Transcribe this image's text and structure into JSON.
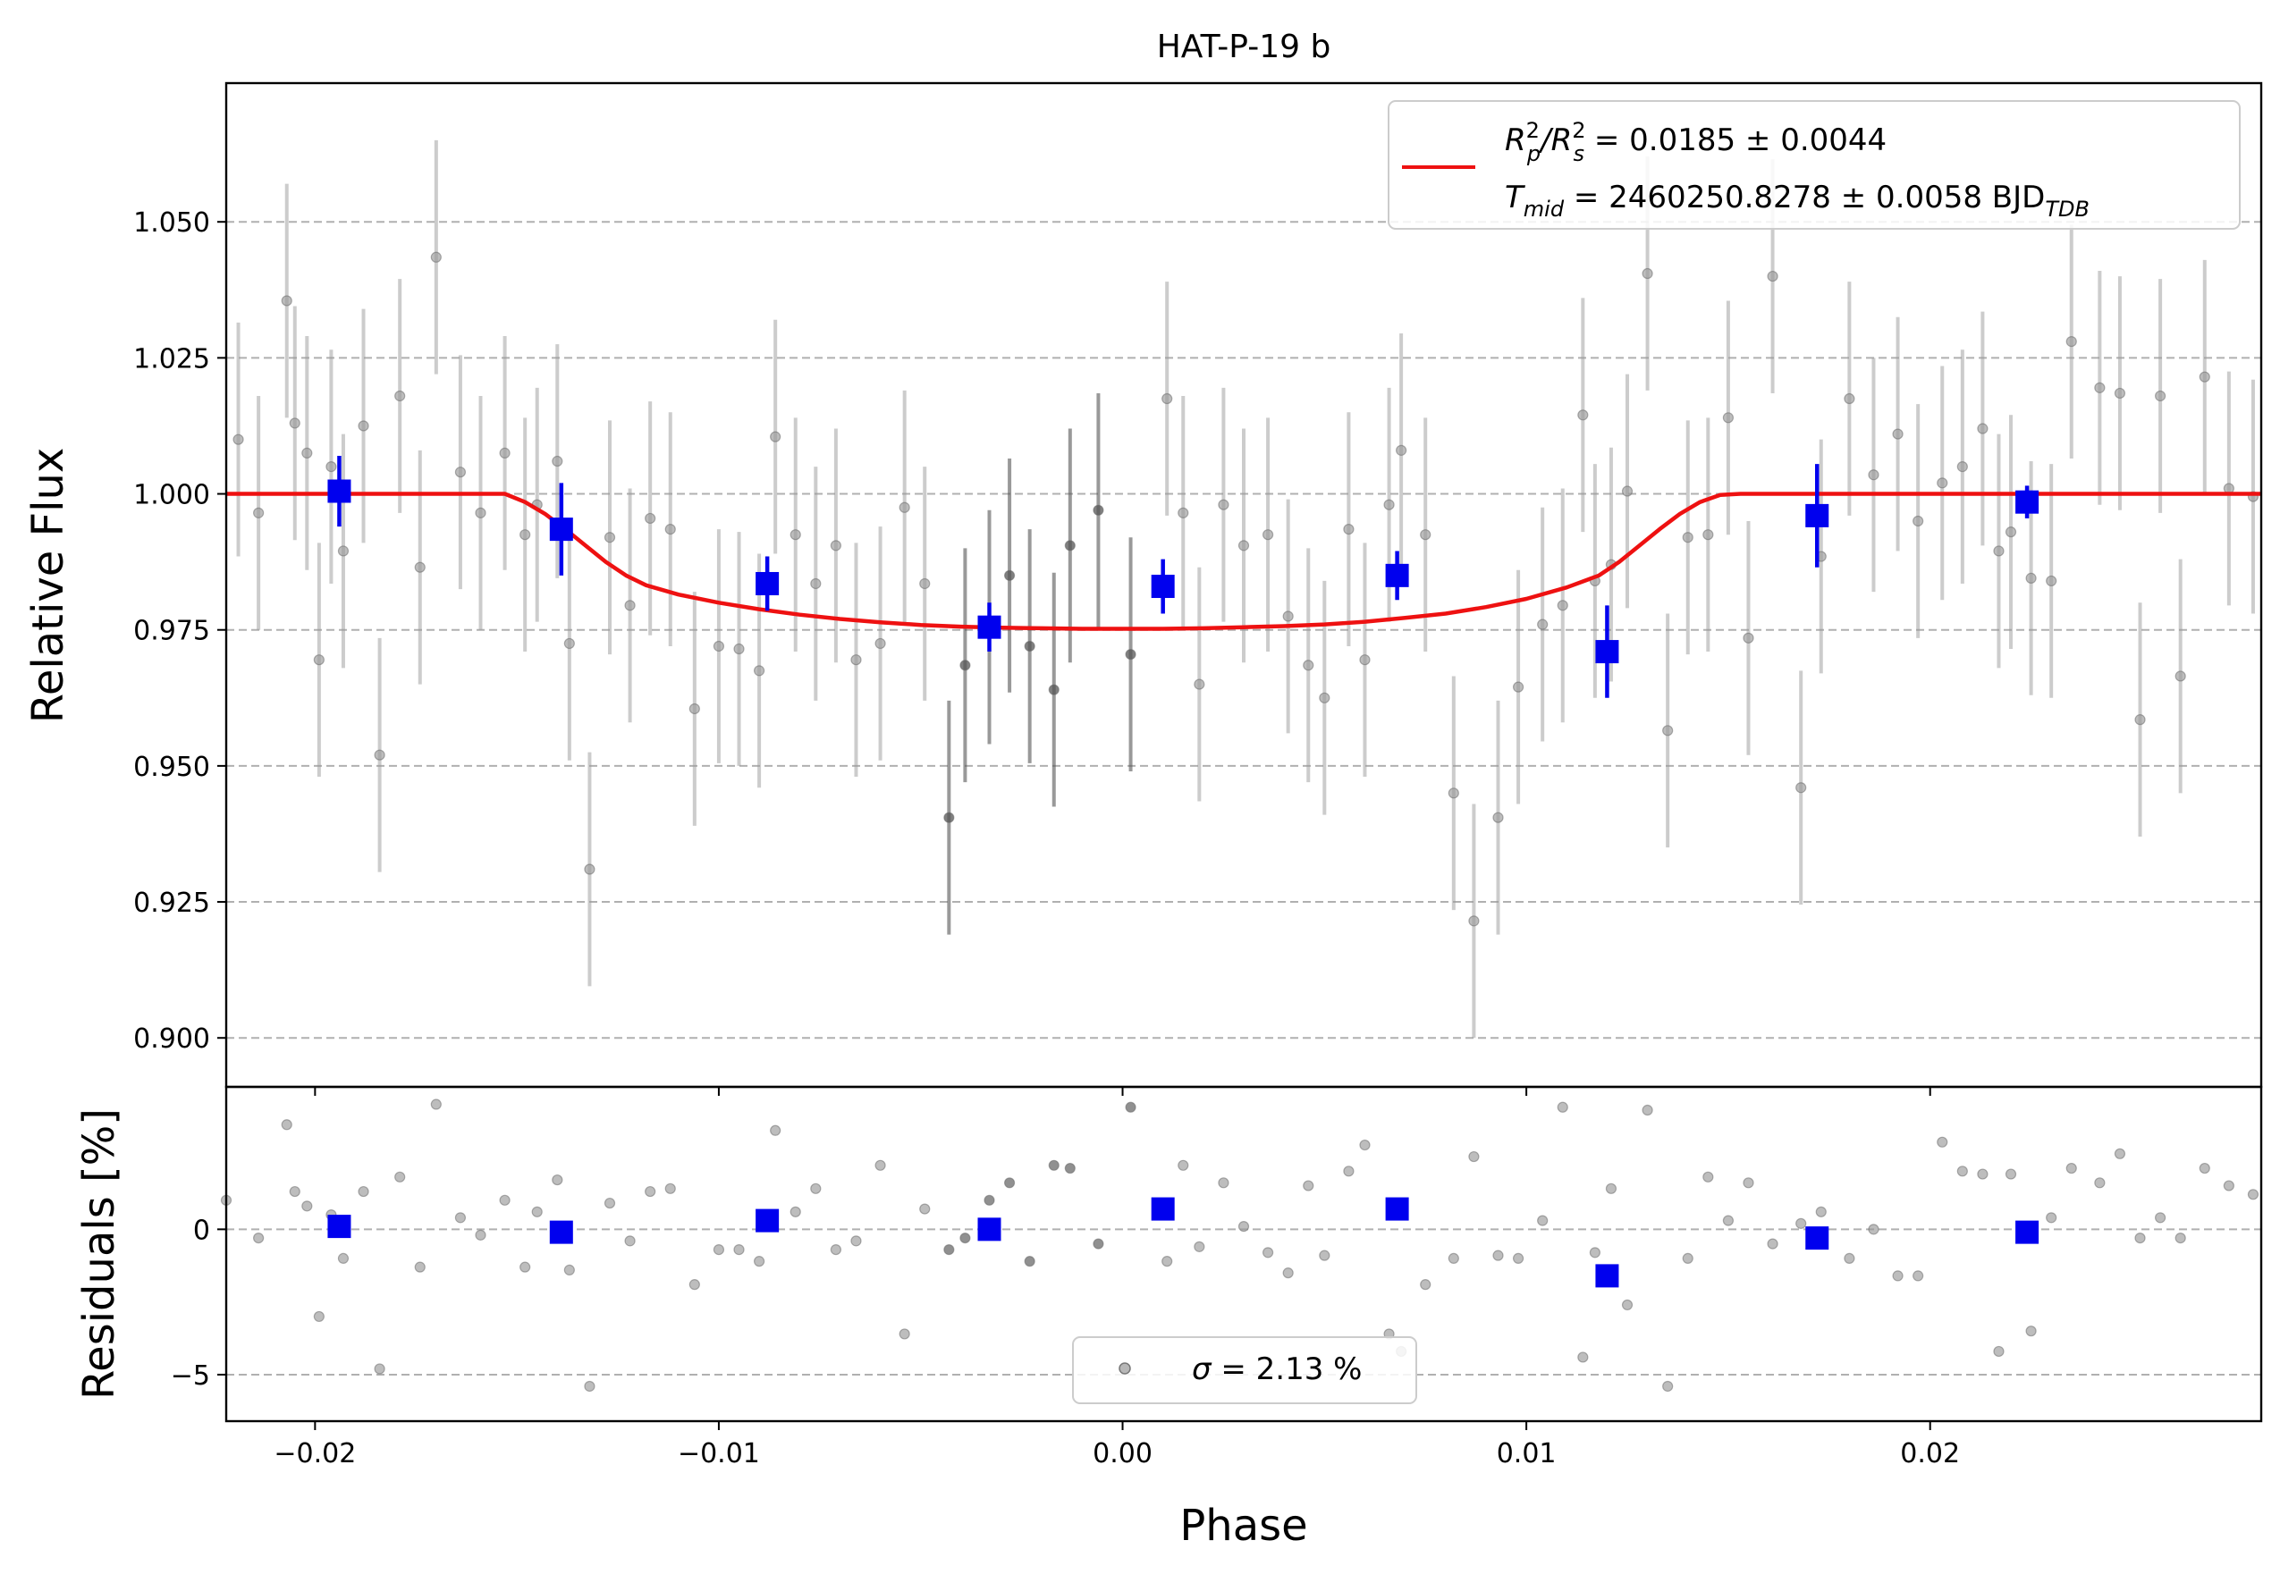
{
  "chart_data": [
    {
      "type": "scatter",
      "title": "HAT-P-19 b",
      "xlabel": "",
      "ylabel": "Relative Flux",
      "xlim": [
        -0.0222,
        0.0282
      ],
      "ylim": [
        0.891,
        1.0755
      ],
      "yticks": [
        {
          "value": 0.9,
          "label": "0.900"
        },
        {
          "value": 0.925,
          "label": "0.925"
        },
        {
          "value": 0.95,
          "label": "0.950"
        },
        {
          "value": 0.975,
          "label": "0.975"
        },
        {
          "value": 1.0,
          "label": "1.000"
        },
        {
          "value": 1.025,
          "label": "1.025"
        },
        {
          "value": 1.05,
          "label": "1.050"
        }
      ],
      "grid": "horizontal dashed",
      "legend_position": "top-right",
      "legend_entries": {
        "model_part1": "R",
        "model_sub1": "p",
        "model_sup1": "2",
        "model_part2": "/R",
        "model_sub2": "s",
        "model_sup2": "2",
        "model_value": " = 0.0185 ± 0.0044",
        "tmid_part1": "T",
        "tmid_sub": "mid",
        "tmid_value": " = 2460250.8278 ± 0.0058 BJD",
        "tmid_sub2": "TDB"
      },
      "colors": {
        "model": "#ee1111",
        "binned": "#0000ee",
        "raw": "#999999",
        "raw_dark": "#555555"
      },
      "series": [
        {
          "kind": "raw_points",
          "x": [
            -0.0219,
            -0.0214,
            -0.0207,
            -0.0205,
            -0.0202,
            -0.0199,
            -0.0196,
            -0.0193,
            -0.0188,
            -0.0184,
            -0.0179,
            -0.0174,
            -0.017,
            -0.0164,
            -0.0159,
            -0.0153,
            -0.0148,
            -0.0145,
            -0.014,
            -0.0137,
            -0.0132,
            -0.0127,
            -0.0122,
            -0.0117,
            -0.0112,
            -0.0106,
            -0.01,
            -0.0095,
            -0.009,
            -0.0086,
            -0.0081,
            -0.0076,
            -0.0071,
            -0.0066,
            -0.006,
            -0.0054,
            -0.0049,
            -0.0043,
            -0.0039,
            -0.0033,
            -0.0028,
            -0.0023,
            -0.0017,
            -0.0013,
            -0.0006,
            0.0002,
            0.0011,
            0.0015,
            0.0019,
            0.0025,
            0.003,
            0.0036,
            0.0041,
            0.0046,
            0.005,
            0.0056,
            0.006,
            0.0066,
            0.0069,
            0.0075,
            0.0082,
            0.0087,
            0.0093,
            0.0098,
            0.0104,
            0.0109,
            0.0114,
            0.0117,
            0.0121,
            0.0125,
            0.013,
            0.0135,
            0.014,
            0.0145,
            0.015,
            0.0155,
            0.0161,
            0.0168,
            0.0173,
            0.018,
            0.0186,
            0.0192,
            0.0197,
            0.0203,
            0.0208,
            0.0213,
            0.0217,
            0.022,
            0.0225,
            0.023,
            0.0235,
            0.0242,
            0.0247,
            0.0252,
            0.0257,
            0.0262,
            0.0268,
            0.0274,
            0.028
          ],
          "y": [
            1.01,
            0.9965,
            1.0355,
            1.013,
            1.0075,
            0.9695,
            1.005,
            0.9895,
            1.0125,
            0.952,
            1.018,
            0.9865,
            1.0435,
            1.004,
            0.9965,
            1.0075,
            0.9925,
            0.998,
            1.006,
            0.9725,
            0.931,
            0.992,
            0.9795,
            0.9955,
            0.9935,
            0.9605,
            0.972,
            0.9715,
            0.9675,
            1.0105,
            0.9925,
            0.9835,
            0.9905,
            0.9695,
            0.9725,
            0.9975,
            0.9835,
            0.9405,
            0.9685,
            0.9755,
            0.985,
            0.972,
            0.964,
            0.9905,
            0.997,
            0.9705,
            1.0175,
            0.9965,
            0.965,
            0.998,
            0.9905,
            0.9925,
            0.9775,
            0.9685,
            0.9625,
            0.9935,
            0.9695,
            0.998,
            1.008,
            0.9925,
            0.945,
            0.9215,
            0.9405,
            0.9645,
            0.976,
            0.9795,
            1.0145,
            0.984,
            0.987,
            1.0005,
            1.0405,
            0.9565,
            0.992,
            0.9925,
            1.014,
            0.9735,
            1.04,
            0.946,
            0.9885,
            1.0175,
            1.0035,
            1.011,
            0.995,
            1.002,
            1.005,
            1.012,
            0.9895,
            0.993,
            0.9845,
            0.984,
            1.028,
            1.0195,
            1.0185,
            0.9585,
            1.018,
            0.9665,
            1.0215,
            1.001,
            0.9995
          ],
          "yerr": 0.0215,
          "dark_range": [
            -0.0046,
            0.0006
          ]
        },
        {
          "kind": "binned",
          "x": [
            -0.0194,
            -0.0139,
            -0.0088,
            -0.0033,
            0.001,
            0.0068,
            0.012,
            0.0172,
            0.0224
          ],
          "y": [
            1.0005,
            0.9935,
            0.9835,
            0.9755,
            0.983,
            0.985,
            0.971,
            0.996,
            0.9985
          ],
          "yerr": [
            0.0065,
            0.0085,
            0.005,
            0.0045,
            0.005,
            0.0045,
            0.0085,
            0.0095,
            0.003
          ]
        },
        {
          "kind": "model",
          "x": [
            -0.0222,
            -0.0153,
            -0.0148,
            -0.0143,
            -0.0138,
            -0.0133,
            -0.0128,
            -0.0123,
            -0.0118,
            -0.011,
            -0.01,
            -0.009,
            -0.008,
            -0.007,
            -0.006,
            -0.005,
            -0.004,
            -0.003,
            -0.002,
            -0.001,
            0.0,
            0.001,
            0.002,
            0.003,
            0.004,
            0.005,
            0.006,
            0.007,
            0.008,
            0.009,
            0.01,
            0.011,
            0.0118,
            0.0123,
            0.0128,
            0.0133,
            0.0138,
            0.0143,
            0.0148,
            0.0153,
            0.0282
          ],
          "y": [
            1.0,
            1.0,
            0.9985,
            0.9963,
            0.9935,
            0.9905,
            0.9875,
            0.985,
            0.9832,
            0.9815,
            0.98,
            0.9788,
            0.9778,
            0.977,
            0.9764,
            0.9759,
            0.9756,
            0.9754,
            0.9753,
            0.9752,
            0.9752,
            0.9752,
            0.9753,
            0.9755,
            0.9757,
            0.976,
            0.9765,
            0.9772,
            0.978,
            0.9792,
            0.9807,
            0.9828,
            0.985,
            0.9875,
            0.9905,
            0.9935,
            0.9963,
            0.9985,
            0.9998,
            1.0,
            1.0
          ]
        }
      ]
    },
    {
      "type": "scatter",
      "xlabel": "Phase",
      "ylabel": "Residuals [%]",
      "xlim": [
        -0.0222,
        0.0282
      ],
      "ylim": [
        -6.6,
        4.9
      ],
      "xticks": [
        {
          "value": -0.02,
          "label": "−0.02"
        },
        {
          "value": -0.01,
          "label": "−0.01"
        },
        {
          "value": 0.0,
          "label": "0.00"
        },
        {
          "value": 0.01,
          "label": "0.01"
        },
        {
          "value": 0.02,
          "label": "0.02"
        }
      ],
      "yticks": [
        {
          "value": -5,
          "label": "−5"
        },
        {
          "value": 0,
          "label": "0"
        }
      ],
      "grid": "horizontal dashed",
      "legend_position": "bottom-center",
      "legend_text_sigma": "σ",
      "legend_text_value": " = 2.13 %",
      "series": [
        {
          "kind": "raw_points",
          "x": [
            -0.0222,
            -0.0214,
            -0.0207,
            -0.0205,
            -0.0202,
            -0.0199,
            -0.0196,
            -0.0193,
            -0.0188,
            -0.0184,
            -0.0179,
            -0.0174,
            -0.017,
            -0.0164,
            -0.0159,
            -0.0153,
            -0.0148,
            -0.0145,
            -0.014,
            -0.0137,
            -0.0132,
            -0.0127,
            -0.0122,
            -0.0117,
            -0.0112,
            -0.0106,
            -0.01,
            -0.0095,
            -0.009,
            -0.0086,
            -0.0081,
            -0.0076,
            -0.0071,
            -0.0066,
            -0.006,
            -0.0054,
            -0.0049,
            -0.0043,
            -0.0039,
            -0.0033,
            -0.0028,
            -0.0023,
            -0.0017,
            -0.0013,
            -0.0006,
            0.0002,
            0.0011,
            0.0015,
            0.0019,
            0.0025,
            0.003,
            0.0036,
            0.0041,
            0.0046,
            0.005,
            0.0056,
            0.006,
            0.0066,
            0.0069,
            0.0075,
            0.0082,
            0.0087,
            0.0093,
            0.0098,
            0.0104,
            0.0109,
            0.0114,
            0.0117,
            0.0121,
            0.0125,
            0.013,
            0.0135,
            0.014,
            0.0145,
            0.015,
            0.0155,
            0.0161,
            0.0168,
            0.0173,
            0.018,
            0.0186,
            0.0192,
            0.0197,
            0.0203,
            0.0208,
            0.0213,
            0.0217,
            0.022,
            0.0225,
            0.023,
            0.0235,
            0.0242,
            0.0247,
            0.0252,
            0.0257,
            0.0262,
            0.0268,
            0.0274,
            0.028
          ],
          "y": [
            1.0,
            -0.3,
            3.6,
            1.3,
            0.8,
            -3.0,
            0.5,
            -1.0,
            1.3,
            -4.8,
            1.8,
            -1.3,
            4.3,
            0.4,
            -0.2,
            1.0,
            -1.3,
            0.6,
            1.7,
            -1.4,
            -5.4,
            0.9,
            -0.4,
            1.3,
            1.4,
            -1.9,
            -0.7,
            -0.7,
            -1.1,
            3.4,
            0.6,
            1.4,
            -0.7,
            -0.4,
            2.2,
            -3.6,
            0.7,
            -0.7,
            -0.3,
            1.0,
            1.6,
            -1.1,
            2.2,
            2.1,
            -0.5,
            4.2,
            -1.1,
            2.2,
            -0.6,
            1.6,
            0.1,
            -0.8,
            -1.5,
            1.5,
            -0.9,
            2.0,
            2.9,
            -3.6,
            -4.2,
            -1.9,
            -1.0,
            2.5,
            -0.9,
            -1.0,
            0.3,
            4.2,
            -4.4,
            -0.8,
            1.4,
            -2.6,
            4.1,
            -5.4,
            -1.0,
            1.8,
            0.3,
            1.6,
            -0.5,
            0.2,
            0.6,
            -1.0,
            0.0,
            -1.6,
            -1.6,
            3.0,
            2.0,
            1.9,
            -4.2,
            1.9,
            -3.5,
            0.4,
            2.1,
            1.6,
            2.6,
            -0.3,
            0.4,
            -0.3,
            2.1,
            1.5,
            1.2
          ],
          "dark_range": [
            -0.0046,
            0.0006
          ]
        },
        {
          "kind": "binned",
          "x": [
            -0.0194,
            -0.0139,
            -0.0088,
            -0.0033,
            0.001,
            0.0068,
            0.012,
            0.0172,
            0.0224
          ],
          "y": [
            0.1,
            -0.1,
            0.3,
            0.0,
            0.7,
            0.7,
            -1.6,
            -0.3,
            -0.1
          ]
        }
      ]
    }
  ]
}
